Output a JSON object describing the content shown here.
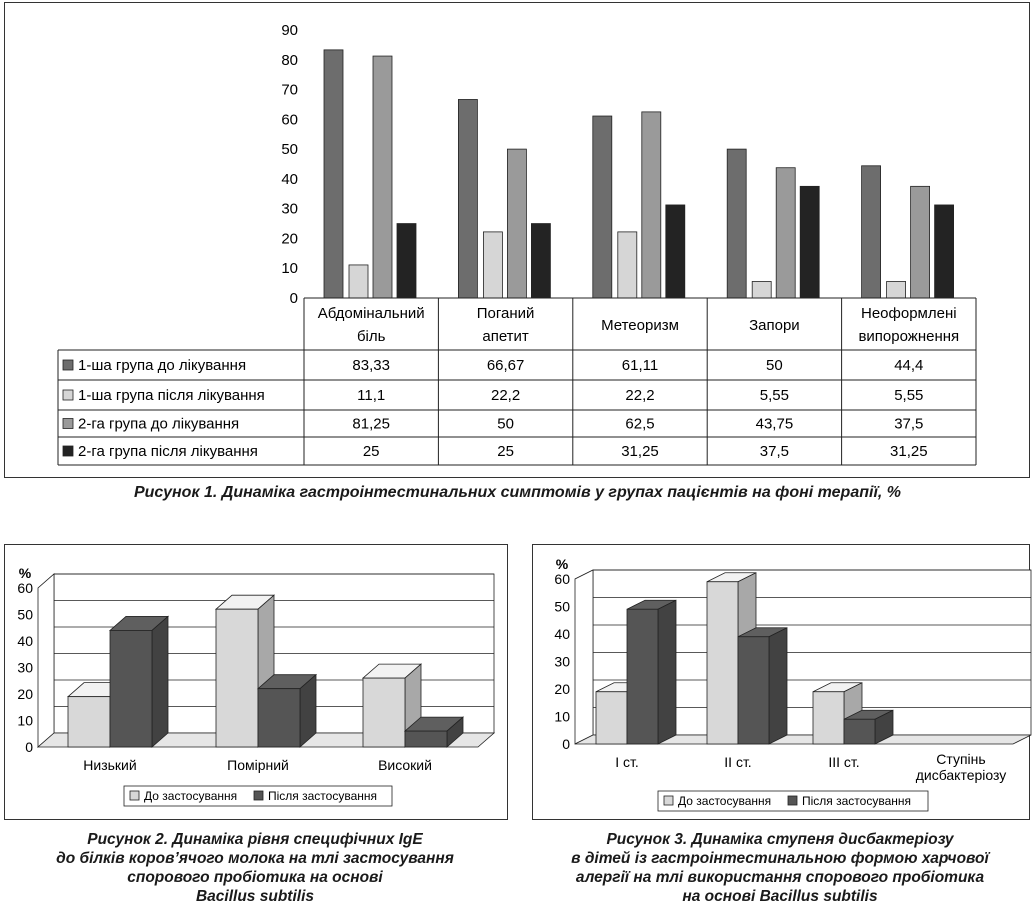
{
  "chart_data": [
    {
      "type": "bar",
      "title": "",
      "caption": "Рисунок 1. Динаміка гастроінтестинальних симптомів у групах пацієнтів на фоні терапії, %",
      "categories": [
        [
          "Абдомінальний",
          "біль"
        ],
        [
          "Поганий",
          "апетит"
        ],
        [
          "Метеоризм"
        ],
        [
          "Запори"
        ],
        [
          "Неоформлені",
          "випорожнення"
        ]
      ],
      "ylim": [
        0,
        90
      ],
      "yticks": [
        0,
        10,
        20,
        30,
        40,
        50,
        60,
        70,
        80,
        90
      ],
      "series": [
        {
          "name": "1-ша група до лікування",
          "color": "#6d6d6d",
          "values": [
            83.33,
            66.67,
            61.11,
            50,
            44.4
          ],
          "labels": [
            "83,33",
            "66,67",
            "61,11",
            "50",
            "44,4"
          ]
        },
        {
          "name": "1-ша група після лікування",
          "color": "#d6d6d6",
          "values": [
            11.1,
            22.2,
            22.2,
            5.55,
            5.55
          ],
          "labels": [
            "11,1",
            "22,2",
            "22,2",
            "5,55",
            "5,55"
          ]
        },
        {
          "name": "2-га група до лікування",
          "color": "#9a9a9a",
          "values": [
            81.25,
            50,
            62.5,
            43.75,
            37.5
          ],
          "labels": [
            "81,25",
            "50",
            "62,5",
            "43,75",
            "37,5"
          ]
        },
        {
          "name": "2-га група після лікування",
          "color": "#232323",
          "values": [
            25,
            25,
            31.25,
            37.5,
            31.25
          ],
          "labels": [
            "25",
            "25",
            "31,25",
            "37,5",
            "31,25"
          ]
        }
      ],
      "legend": "data table"
    },
    {
      "type": "bar",
      "title": "",
      "caption": [
        "Рисунок 2. Динаміка рівня специфічних IgE",
        "до білків коров’ячого молока на тлі застосування",
        "спорового пробіотика на основі",
        "Bacillus subtilis"
      ],
      "ylabel": "%",
      "categories": [
        "Низький",
        "Помірний",
        "Високий"
      ],
      "ylim": [
        0,
        60
      ],
      "yticks": [
        0,
        10,
        20,
        30,
        40,
        50,
        60
      ],
      "series": [
        {
          "name": "До застосування",
          "color": "#d8d8d8",
          "values": [
            19,
            52,
            26
          ]
        },
        {
          "name": "Після застосування",
          "color": "#555555",
          "values": [
            44,
            22,
            6
          ]
        }
      ],
      "legend": "bottom"
    },
    {
      "type": "bar",
      "title": "",
      "caption": [
        "Рисунок 3. Динаміка ступеня дисбактеріозу",
        "в дітей із гастроінтестинальною формою харчової",
        "алергії на тлі використання спорового пробіотика",
        "на основі Bacillus subtilis"
      ],
      "ylabel": "%",
      "xlabel": [
        "Ступінь",
        "дисбактеріозу"
      ],
      "categories": [
        "I ст.",
        "II ст.",
        "III ст."
      ],
      "ylim": [
        0,
        60
      ],
      "yticks": [
        0,
        10,
        20,
        30,
        40,
        50,
        60
      ],
      "series": [
        {
          "name": "До застосування",
          "color": "#d8d8d8",
          "values": [
            19,
            59,
            19
          ]
        },
        {
          "name": "Після застосування",
          "color": "#555555",
          "values": [
            49,
            39,
            9
          ]
        }
      ],
      "legend": "bottom"
    }
  ]
}
